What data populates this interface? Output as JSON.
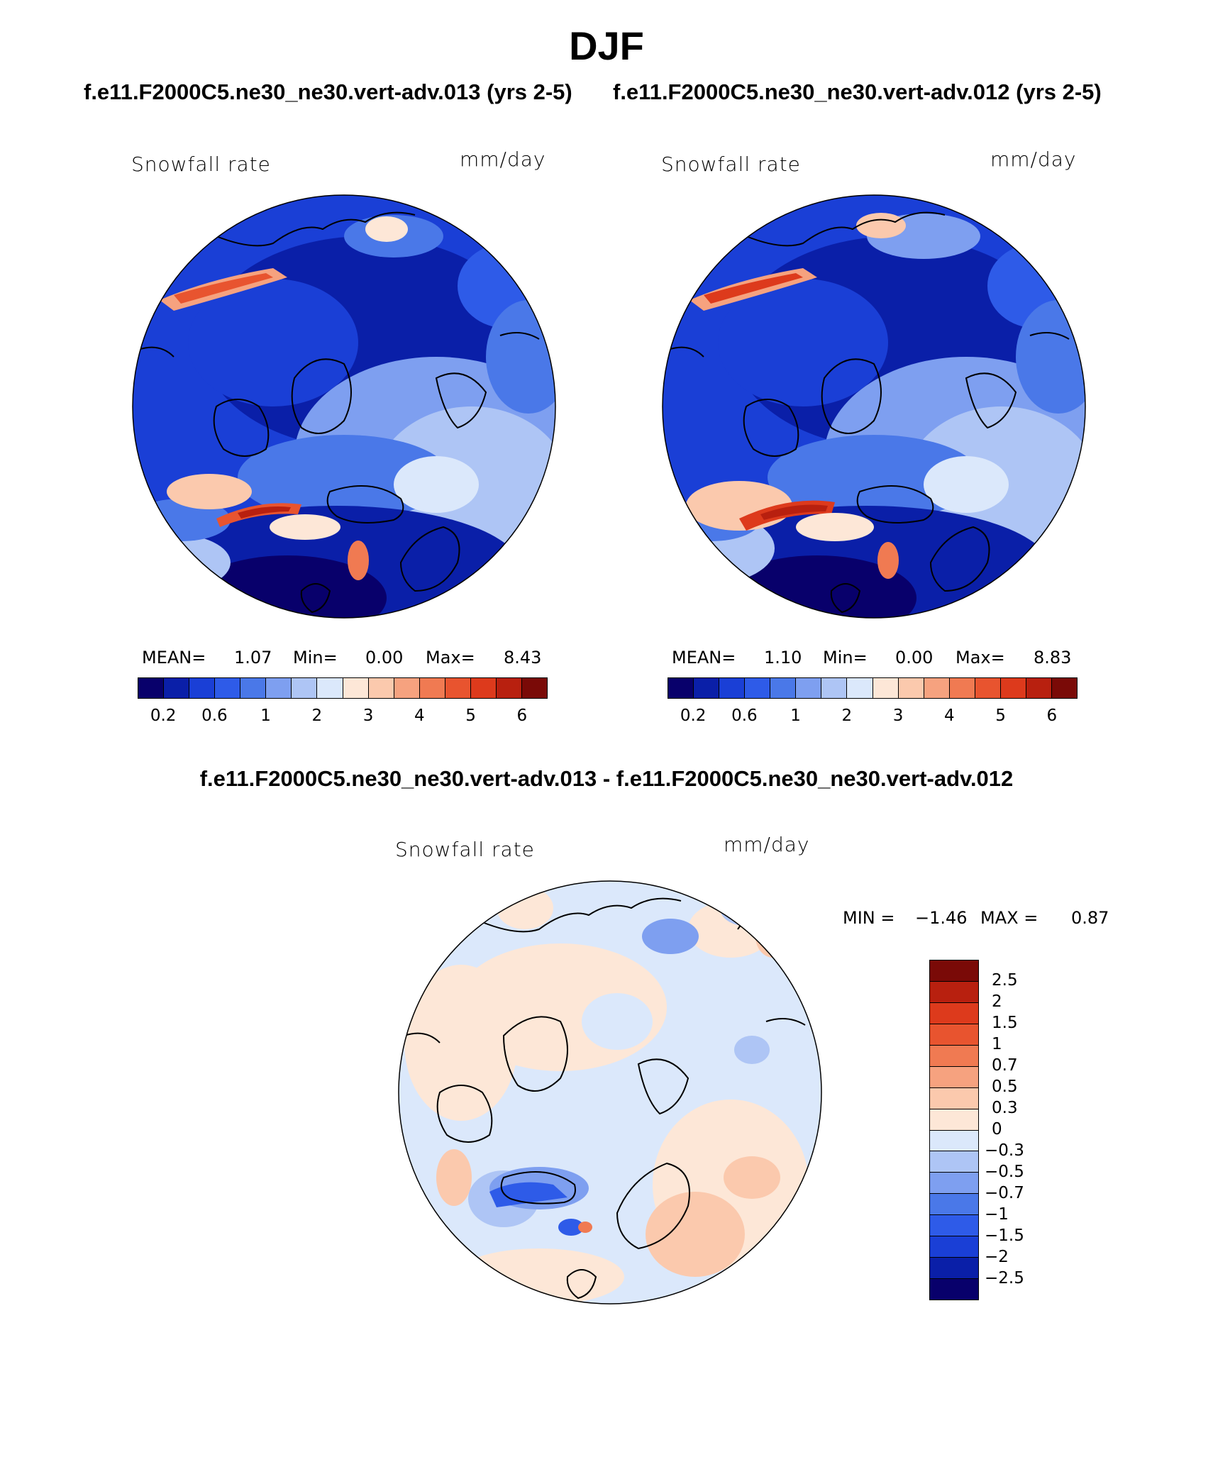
{
  "figure": {
    "title": "DJF",
    "subtitle_left": "f.e11.F2000C5.ne30_ne30.vert-adv.013 (yrs 2-5)",
    "subtitle_right": "f.e11.F2000C5.ne30_ne30.vert-adv.012 (yrs 2-5)",
    "diff_title": "f.e11.F2000C5.ne30_ne30.vert-adv.013 - f.e11.F2000C5.ne30_ne30.vert-adv.012"
  },
  "panels": [
    {
      "variable": "Snowfall rate",
      "units": "mm/day",
      "mean_label": "MEAN=",
      "mean": "1.07",
      "min_label": "Min=",
      "min": "0.00",
      "max_label": "Max=",
      "max": "8.43"
    },
    {
      "variable": "Snowfall rate",
      "units": "mm/day",
      "mean_label": "MEAN=",
      "mean": "1.10",
      "min_label": "Min=",
      "min": "0.00",
      "max_label": "Max=",
      "max": "8.83"
    }
  ],
  "diff_panel": {
    "variable": "Snowfall rate",
    "units": "mm/day",
    "min_label": "MIN =",
    "min": "−1.46",
    "max_label": "MAX =",
    "max": "0.87"
  },
  "colorbar_main": {
    "colors": [
      "#08006b",
      "#0a1fa8",
      "#1a3fd6",
      "#2e5be8",
      "#4a78e8",
      "#7e9ff0",
      "#aec5f5",
      "#dbe8fb",
      "#fde7d7",
      "#fbc9ad",
      "#f6a27f",
      "#f07a52",
      "#e8542f",
      "#dd3a1c",
      "#b8200f",
      "#7a0a07"
    ],
    "tick_labels": [
      "0.2",
      "0.6",
      "1",
      "2",
      "3",
      "4",
      "5",
      "6"
    ]
  },
  "colorbar_diff": {
    "colors": [
      "#7a0a07",
      "#b8200f",
      "#dd3a1c",
      "#e8542f",
      "#f07a52",
      "#f6a27f",
      "#fbc9ad",
      "#fde7d7",
      "#dbe8fb",
      "#aec5f5",
      "#7e9ff0",
      "#4a78e8",
      "#2e5be8",
      "#1a3fd6",
      "#0a1fa8",
      "#08006b"
    ],
    "tick_labels": [
      "2.5",
      "2",
      "1.5",
      "1",
      "0.7",
      "0.5",
      "0.3",
      "0",
      "−0.3",
      "−0.5",
      "−0.7",
      "−1",
      "−1.5",
      "−2",
      "−2.5"
    ]
  }
}
